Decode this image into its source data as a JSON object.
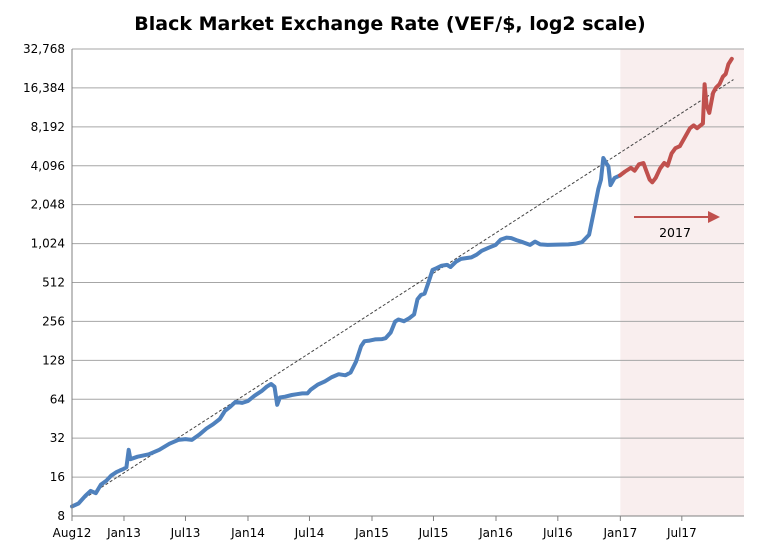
{
  "chart_data": {
    "type": "line",
    "title": "Black Market Exchange Rate (VEF/$, log2 scale)",
    "y_scale": "log2",
    "ylim": [
      8,
      32768
    ],
    "y_ticks": [
      "8",
      "16",
      "32",
      "64",
      "128",
      "256",
      "512",
      "1,024",
      "2,048",
      "4,096",
      "8,192",
      "16,384",
      "32,768"
    ],
    "y_tick_values": [
      8,
      16,
      32,
      64,
      128,
      256,
      512,
      1024,
      2048,
      4096,
      8192,
      16384,
      32768
    ],
    "x_range": [
      "2012-08-01",
      "2017-12-31"
    ],
    "x_ticks": [
      "Aug12",
      "Jan13",
      "Jul13",
      "Jan14",
      "Jul14",
      "Jan15",
      "Jul15",
      "Jan16",
      "Jul16",
      "Jan17",
      "Jul17"
    ],
    "x_tick_dates": [
      "2012-08-01",
      "2013-01-01",
      "2013-07-01",
      "2014-01-01",
      "2014-07-01",
      "2015-01-01",
      "2015-07-01",
      "2016-01-01",
      "2016-07-01",
      "2017-01-01",
      "2017-07-01"
    ],
    "grid": "horizontal",
    "highlight": {
      "start": "2017-01-01",
      "end": "2017-12-31",
      "color": "#f9eeee"
    },
    "annotation": {
      "text": "2017",
      "arrow_color": "#c0504d"
    },
    "series": [
      {
        "color": "#4f81bd",
        "points": [
          [
            "2012-08-01",
            9.5
          ],
          [
            "2012-08-20",
            10
          ],
          [
            "2012-09-10",
            11.5
          ],
          [
            "2012-09-25",
            12.5
          ],
          [
            "2012-10-10",
            12
          ],
          [
            "2012-10-25",
            14
          ],
          [
            "2012-11-10",
            15
          ],
          [
            "2012-11-25",
            16.5
          ],
          [
            "2012-12-10",
            17.5
          ],
          [
            "2012-12-20",
            18
          ],
          [
            "2012-12-31",
            18.5
          ],
          [
            "2013-01-08",
            19
          ],
          [
            "2013-01-15",
            26
          ],
          [
            "2013-01-20",
            22
          ],
          [
            "2013-02-10",
            23
          ],
          [
            "2013-03-15",
            24
          ],
          [
            "2013-04-15",
            26
          ],
          [
            "2013-05-15",
            29
          ],
          [
            "2013-06-10",
            31
          ],
          [
            "2013-07-01",
            31.5
          ],
          [
            "2013-07-20",
            31
          ],
          [
            "2013-08-10",
            34
          ],
          [
            "2013-09-01",
            38
          ],
          [
            "2013-09-20",
            41
          ],
          [
            "2013-10-10",
            45
          ],
          [
            "2013-10-25",
            52
          ],
          [
            "2013-11-10",
            56
          ],
          [
            "2013-11-25",
            61
          ],
          [
            "2013-12-15",
            60
          ],
          [
            "2014-01-01",
            62
          ],
          [
            "2014-01-20",
            68
          ],
          [
            "2014-02-10",
            74
          ],
          [
            "2014-02-25",
            80
          ],
          [
            "2014-03-10",
            84
          ],
          [
            "2014-03-20",
            80
          ],
          [
            "2014-03-28",
            58
          ],
          [
            "2014-04-05",
            66
          ],
          [
            "2014-04-20",
            67
          ],
          [
            "2014-05-10",
            69
          ],
          [
            "2014-05-25",
            70
          ],
          [
            "2014-06-10",
            71
          ],
          [
            "2014-06-25",
            71
          ],
          [
            "2014-07-05",
            76
          ],
          [
            "2014-07-25",
            83
          ],
          [
            "2014-08-15",
            88
          ],
          [
            "2014-09-05",
            95
          ],
          [
            "2014-09-25",
            100
          ],
          [
            "2014-10-15",
            98
          ],
          [
            "2014-10-30",
            103
          ],
          [
            "2014-11-15",
            125
          ],
          [
            "2014-11-30",
            165
          ],
          [
            "2014-12-10",
            180
          ],
          [
            "2014-12-25",
            182
          ],
          [
            "2015-01-10",
            186
          ],
          [
            "2015-01-31",
            187
          ],
          [
            "2015-02-10",
            190
          ],
          [
            "2015-02-25",
            210
          ],
          [
            "2015-03-10",
            255
          ],
          [
            "2015-03-20",
            265
          ],
          [
            "2015-04-05",
            257
          ],
          [
            "2015-04-20",
            270
          ],
          [
            "2015-05-05",
            290
          ],
          [
            "2015-05-15",
            380
          ],
          [
            "2015-05-25",
            410
          ],
          [
            "2015-06-05",
            420
          ],
          [
            "2015-06-15",
            500
          ],
          [
            "2015-06-28",
            640
          ],
          [
            "2015-07-10",
            660
          ],
          [
            "2015-07-25",
            690
          ],
          [
            "2015-08-10",
            700
          ],
          [
            "2015-08-20",
            675
          ],
          [
            "2015-09-05",
            740
          ],
          [
            "2015-09-20",
            780
          ],
          [
            "2015-10-05",
            790
          ],
          [
            "2015-10-20",
            800
          ],
          [
            "2015-11-05",
            840
          ],
          [
            "2015-11-20",
            900
          ],
          [
            "2015-12-10",
            950
          ],
          [
            "2015-12-31",
            1000
          ],
          [
            "2016-01-15",
            1100
          ],
          [
            "2016-02-01",
            1140
          ],
          [
            "2016-02-15",
            1130
          ],
          [
            "2016-03-01",
            1090
          ],
          [
            "2016-03-20",
            1050
          ],
          [
            "2016-04-10",
            1000
          ],
          [
            "2016-04-25",
            1060
          ],
          [
            "2016-05-10",
            1010
          ],
          [
            "2016-06-01",
            1000
          ],
          [
            "2016-07-01",
            1005
          ],
          [
            "2016-08-01",
            1010
          ],
          [
            "2016-08-20",
            1020
          ],
          [
            "2016-09-10",
            1050
          ],
          [
            "2016-10-01",
            1200
          ],
          [
            "2016-10-15",
            1800
          ],
          [
            "2016-10-28",
            2700
          ],
          [
            "2016-11-05",
            3200
          ],
          [
            "2016-11-12",
            4700
          ],
          [
            "2016-11-20",
            4300
          ],
          [
            "2016-11-27",
            4050
          ],
          [
            "2016-12-03",
            2900
          ],
          [
            "2016-12-15",
            3300
          ],
          [
            "2016-12-31",
            3450
          ]
        ]
      },
      {
        "color": "#c0504d",
        "points": [
          [
            "2016-12-31",
            3450
          ],
          [
            "2017-01-15",
            3700
          ],
          [
            "2017-02-01",
            3950
          ],
          [
            "2017-02-12",
            3750
          ],
          [
            "2017-02-25",
            4200
          ],
          [
            "2017-03-10",
            4300
          ],
          [
            "2017-03-20",
            3650
          ],
          [
            "2017-03-28",
            3200
          ],
          [
            "2017-04-05",
            3050
          ],
          [
            "2017-04-15",
            3300
          ],
          [
            "2017-04-28",
            3900
          ],
          [
            "2017-05-10",
            4300
          ],
          [
            "2017-05-20",
            4100
          ],
          [
            "2017-06-01",
            5100
          ],
          [
            "2017-06-12",
            5600
          ],
          [
            "2017-06-25",
            5800
          ],
          [
            "2017-07-10",
            6800
          ],
          [
            "2017-07-25",
            8000
          ],
          [
            "2017-08-05",
            8400
          ],
          [
            "2017-08-15",
            8000
          ],
          [
            "2017-08-25",
            8400
          ],
          [
            "2017-09-01",
            8700
          ],
          [
            "2017-09-06",
            17500
          ],
          [
            "2017-09-12",
            12000
          ],
          [
            "2017-09-20",
            10500
          ],
          [
            "2017-10-01",
            15000
          ],
          [
            "2017-10-10",
            16500
          ],
          [
            "2017-10-20",
            17500
          ],
          [
            "2017-10-30",
            20000
          ],
          [
            "2017-11-07",
            21000
          ],
          [
            "2017-11-15",
            25000
          ],
          [
            "2017-11-25",
            27500
          ]
        ]
      }
    ],
    "trendline": {
      "style": "dashed",
      "color": "#444444",
      "points": [
        [
          "2012-08-01",
          9.5
        ],
        [
          "2017-11-30",
          19000
        ]
      ]
    }
  }
}
